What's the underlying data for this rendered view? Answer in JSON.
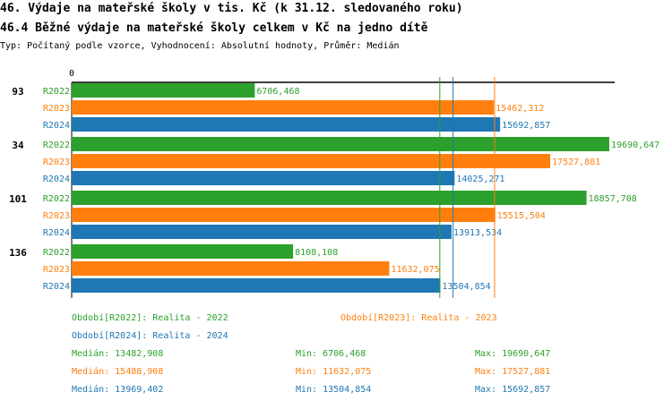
{
  "header": {
    "title1": "46. Výdaje na mateřské školy v tis. Kč (k 31.12. sledovaného roku)",
    "title2": "46.4 Běžné výdaje na mateřské školy celkem v Kč na jedno dítě",
    "subtitle": "Typ: Počítaný podle vzorce, Vyhodnocení: Absolutní hodnoty, Průměr: Medián"
  },
  "colors": {
    "R2022": "#2ca02c",
    "R2023": "#ff7f0e",
    "R2024": "#1f77b4",
    "text": "#000000",
    "axis": "#000000"
  },
  "chart_data": {
    "type": "bar",
    "orientation": "horizontal",
    "x_axis_zero_label": "0",
    "xlim": [
      0,
      19690.647
    ],
    "groups": [
      "93",
      "34",
      "101",
      "136"
    ],
    "series": [
      {
        "name": "R2022",
        "values": [
          6706.468,
          19690.647,
          18857.708,
          8108.108
        ],
        "value_labels": [
          "6706,468",
          "19690,647",
          "18857,708",
          "8108,108"
        ]
      },
      {
        "name": "R2023",
        "values": [
          15462.312,
          17527.881,
          15515.504,
          11632.075
        ],
        "value_labels": [
          "15462,312",
          "17527,881",
          "15515,504",
          "11632,075"
        ]
      },
      {
        "name": "R2024",
        "values": [
          15692.857,
          14025.271,
          13913.534,
          13504.854
        ],
        "value_labels": [
          "15692,857",
          "14025,271",
          "13913,534",
          "13504,854"
        ]
      }
    ],
    "median_lines": {
      "R2022": 13482.908,
      "R2023": 15488.908,
      "R2024": 13969.402
    },
    "legend": [
      {
        "series": "R2022",
        "text": "Období[R2022]: Realita - 2022"
      },
      {
        "series": "R2023",
        "text": "Období[R2023]: Realita - 2023"
      },
      {
        "series": "R2024",
        "text": "Období[R2024]: Realita - 2024"
      }
    ],
    "stats": [
      {
        "series": "R2022",
        "median": "Medián: 13482,908",
        "min": "Min: 6706,468",
        "max": "Max: 19690,647"
      },
      {
        "series": "R2023",
        "median": "Medián: 15488,908",
        "min": "Min: 11632,075",
        "max": "Max: 17527,881"
      },
      {
        "series": "R2024",
        "median": "Medián: 13969,402",
        "min": "Min: 13504,854",
        "max": "Max: 15692,857"
      }
    ]
  }
}
